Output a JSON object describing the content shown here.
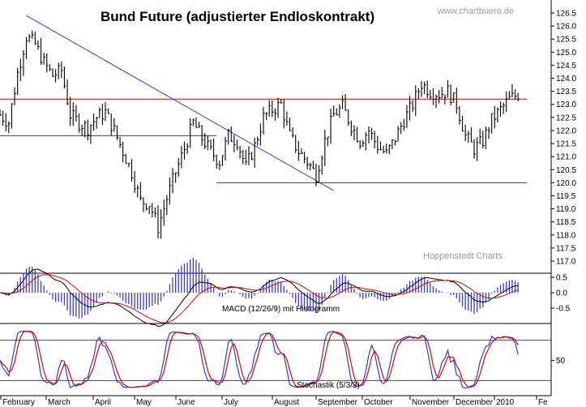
{
  "chart_data": [
    {
      "type": "candlestick",
      "title": "Bund Future (adjustierter Endloskontrakt)",
      "watermark": "www.chartbuero.de",
      "source_label": "Hoppenstedt Charts",
      "ylim": [
        117.0,
        126.5
      ],
      "y_ticks": [
        "126.5",
        "126.0",
        "125.5",
        "125.0",
        "124.5",
        "124.0",
        "123.5",
        "123.0",
        "122.5",
        "122.0",
        "121.5",
        "121.0",
        "120.5",
        "120.0",
        "119.5",
        "119.0",
        "118.5",
        "118.0",
        "117.5",
        "117.0"
      ],
      "x_labels": [
        "February",
        "March",
        "April",
        "May",
        "June",
        "July",
        "August",
        "September",
        "October",
        "November",
        "December",
        "2010",
        "Fe"
      ],
      "price_path": [
        [
          0,
          122.6
        ],
        [
          3,
          122.3
        ],
        [
          6,
          124.2
        ],
        [
          9,
          125.6
        ],
        [
          12,
          125.3
        ],
        [
          15,
          124.6
        ],
        [
          18,
          124.1
        ],
        [
          21,
          124.3
        ],
        [
          24,
          122.6
        ],
        [
          27,
          122.3
        ],
        [
          30,
          122.1
        ],
        [
          33,
          122.5
        ],
        [
          36,
          122.7
        ],
        [
          39,
          122.0
        ],
        [
          42,
          121.2
        ],
        [
          45,
          120.4
        ],
        [
          48,
          119.3
        ],
        [
          51,
          119.2
        ],
        [
          54,
          118.3
        ],
        [
          57,
          119.4
        ],
        [
          60,
          120.4
        ],
        [
          63,
          121.3
        ],
        [
          66,
          122.3
        ],
        [
          69,
          121.7
        ],
        [
          72,
          121.2
        ],
        [
          75,
          120.8
        ],
        [
          78,
          121.8
        ],
        [
          81,
          121.6
        ],
        [
          84,
          120.6
        ],
        [
          87,
          121.4
        ],
        [
          90,
          122.5
        ],
        [
          93,
          122.8
        ],
        [
          96,
          123.0
        ],
        [
          99,
          121.8
        ],
        [
          102,
          121.2
        ],
        [
          105,
          120.8
        ],
        [
          108,
          120.3
        ],
        [
          111,
          121.6
        ],
        [
          114,
          122.6
        ],
        [
          117,
          122.9
        ],
        [
          120,
          122.2
        ],
        [
          123,
          121.6
        ],
        [
          126,
          122.0
        ],
        [
          129,
          121.4
        ],
        [
          132,
          121.1
        ],
        [
          135,
          121.7
        ],
        [
          138,
          122.4
        ],
        [
          141,
          123.0
        ],
        [
          144,
          123.8
        ],
        [
          147,
          123.5
        ],
        [
          150,
          123.4
        ],
        [
          153,
          123.5
        ],
        [
          156,
          123.0
        ],
        [
          159,
          121.8
        ],
        [
          162,
          121.3
        ],
        [
          165,
          121.6
        ],
        [
          168,
          122.4
        ],
        [
          171,
          122.8
        ],
        [
          174,
          123.2
        ],
        [
          177,
          123.4
        ]
      ],
      "horizontal_lines": [
        {
          "value": 121.8,
          "from_day": 0,
          "to_day": 74
        },
        {
          "value": 120.0,
          "from_day": 74,
          "to_day": 180
        },
        {
          "value": 123.2,
          "from_day": 0,
          "to_day": 180
        }
      ],
      "trendlines": [
        {
          "from": [
            9,
            126.4
          ],
          "to": [
            114,
            119.7
          ]
        }
      ]
    },
    {
      "type": "line",
      "label": "MACD (12/26/9) mit Histogramm",
      "ylim": [
        -1.0,
        1.0
      ],
      "y_ticks": [
        "0.5",
        "0.0",
        "-0.5"
      ]
    },
    {
      "type": "line",
      "label": "Stochastik (5/3/3)",
      "ylim": [
        0,
        100
      ],
      "y_ticks": [
        "50"
      ],
      "levels": [
        80,
        20
      ]
    }
  ],
  "colors": {
    "price": "#000000",
    "support": "#d40000",
    "trend": "#2d3dd2",
    "macd_line": "#000000",
    "signal_line": "#e00000",
    "histogram": "#3a3ad0",
    "stoch_k": "#2d3dd2",
    "stoch_d": "#e00000",
    "stoch_levels": "#2d3dd2"
  }
}
